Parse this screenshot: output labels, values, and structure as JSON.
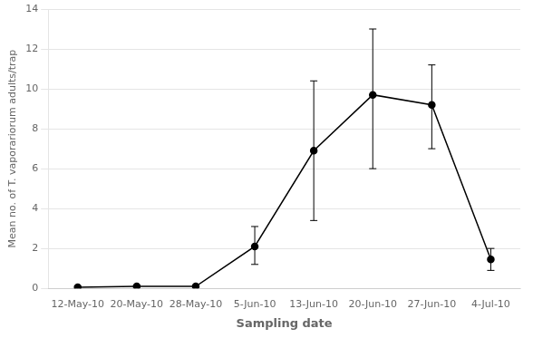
{
  "chart_data": {
    "type": "line",
    "xlabel": "Sampling date",
    "ylabel": "Mean no. of T. vaporariorum adults/trap",
    "categories": [
      "12-May-10",
      "20-May-10",
      "28-May-10",
      "5-Jun-10",
      "13-Jun-10",
      "20-Jun-10",
      "27-Jun-10",
      "4-Jul-10"
    ],
    "values": [
      0.05,
      0.1,
      0.1,
      2.1,
      6.9,
      9.7,
      9.2,
      1.45
    ],
    "err_lower": [
      0.05,
      0.05,
      0.05,
      0.9,
      3.5,
      3.7,
      2.2,
      0.55
    ],
    "err_upper": [
      0.05,
      0.05,
      0.05,
      1.0,
      3.5,
      3.3,
      2.0,
      0.55
    ],
    "color": "#000000",
    "marker": "circle",
    "ylim": [
      0,
      14
    ],
    "yticks": [
      0,
      2,
      4,
      6,
      8,
      10,
      12,
      14
    ],
    "grid": "y"
  }
}
